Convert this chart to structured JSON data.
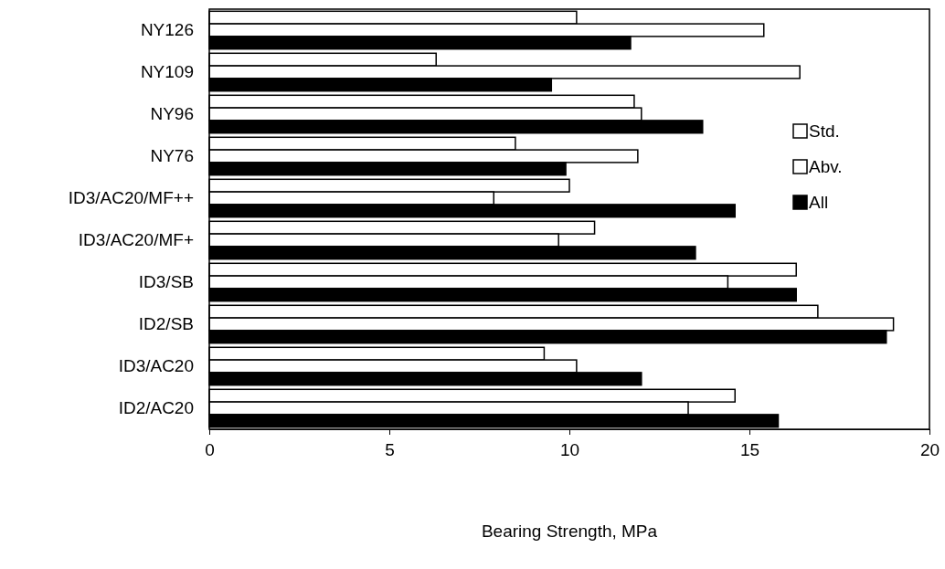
{
  "chart_data": {
    "type": "bar",
    "orientation": "horizontal",
    "xlabel": "Bearing Strength, MPa",
    "categories": [
      "NY126",
      "NY109",
      "NY96",
      "NY76",
      "ID3/AC20/MF++",
      "ID3/AC20/MF+",
      "ID3/SB",
      "ID2/SB",
      "ID3/AC20",
      "ID2/AC20"
    ],
    "series": [
      {
        "name": "Std.",
        "color": "#ffffff",
        "values": [
          10.2,
          6.3,
          11.8,
          8.5,
          10.0,
          10.7,
          16.3,
          16.9,
          9.3,
          14.6
        ]
      },
      {
        "name": "Abv.",
        "color": "#ffffff",
        "values": [
          15.4,
          16.4,
          12.0,
          11.9,
          7.9,
          9.7,
          14.4,
          19.0,
          10.2,
          13.3
        ]
      },
      {
        "name": "All",
        "color": "#000000",
        "values": [
          11.7,
          9.5,
          13.7,
          9.9,
          14.6,
          13.5,
          16.3,
          18.8,
          12.0,
          15.8
        ]
      }
    ],
    "xlim": [
      0,
      20
    ],
    "xticks": [
      0,
      5,
      10,
      15,
      20
    ],
    "grid": false,
    "legend": "right"
  }
}
